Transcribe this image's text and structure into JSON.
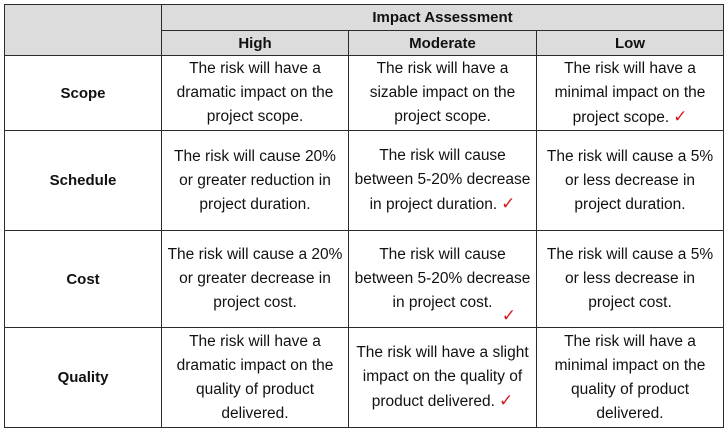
{
  "table": {
    "title": "Impact Assessment",
    "columns": [
      "High",
      "Moderate",
      "Low"
    ],
    "rows": [
      {
        "label": "Scope",
        "cells": [
          {
            "text": "The risk will have a dramatic impact on the project scope.",
            "checked": false
          },
          {
            "text": "The risk will have a sizable impact on the project scope.",
            "checked": false
          },
          {
            "text": "The risk will have a minimal impact on the project scope.",
            "checked": true
          }
        ]
      },
      {
        "label": "Schedule",
        "cells": [
          {
            "text": "The risk will cause 20% or greater reduction in project duration.",
            "checked": false
          },
          {
            "text": "The risk will cause between 5-20% decrease in project duration.",
            "checked": true
          },
          {
            "text": "The risk will cause a 5% or less decrease in project duration.",
            "checked": false
          }
        ]
      },
      {
        "label": "Cost",
        "cells": [
          {
            "text": "The risk will cause a 20% or greater decrease in project cost.",
            "checked": false
          },
          {
            "text": "The risk will cause between 5-20% decrease in project cost.",
            "checked": true
          },
          {
            "text": "The risk will cause a 5% or less decrease in project cost.",
            "checked": false
          }
        ]
      },
      {
        "label": "Quality",
        "cells": [
          {
            "text": "The risk will have a dramatic impact on the quality of product delivered.",
            "checked": false
          },
          {
            "text": "The risk will have a slight impact on the quality of product delivered.",
            "checked": true
          },
          {
            "text": "The risk will have a minimal impact on the quality of product delivered.",
            "checked": false
          }
        ]
      }
    ],
    "check_mark": "✓",
    "check_color": "#d9191f"
  }
}
